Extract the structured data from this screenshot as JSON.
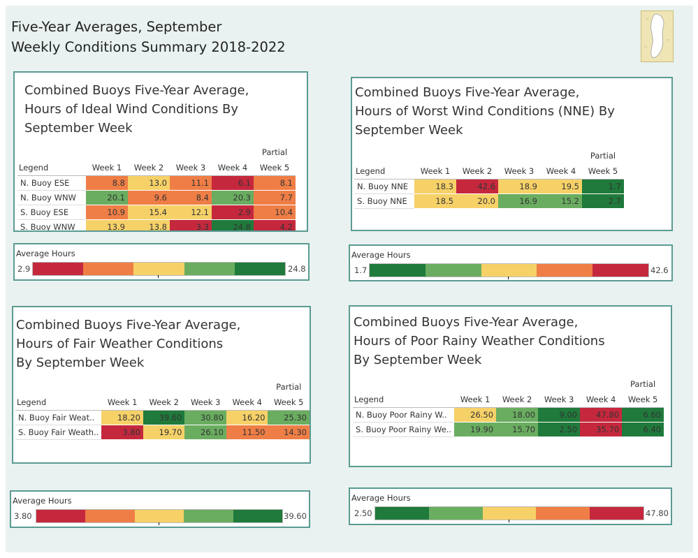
{
  "page": {
    "title_line1": "Five-Year Averages, September",
    "title_line2": "Weekly Conditions Summary 2018-2022",
    "map_icon": "great-lakes-map-thumbnail"
  },
  "colors": {
    "red": "#c5283d",
    "orange": "#ef7e46",
    "yellow": "#f6d168",
    "lightgreen": "#6aad60",
    "darkgreen": "#1f7a3b",
    "border": "#5a9a93",
    "background": "#e9f2f0"
  },
  "panels": [
    {
      "title": [
        "Combined Buoys Five-Year Average,",
        "Hours of Ideal Wind Conditions By",
        "September Week"
      ],
      "legend_header": "Legend",
      "partial_label": "Partial",
      "columns": [
        "Week 1",
        "Week 2",
        "Week 3",
        "Week 4",
        "Week 5"
      ],
      "rows": [
        {
          "label": "N. Buoy ESE",
          "values": [
            "8.8",
            "13.0",
            "11.1",
            "6.1",
            "8.1"
          ],
          "colors": [
            "orange",
            "yellow",
            "orange",
            "red",
            "orange"
          ]
        },
        {
          "label": "N. Buoy WNW",
          "values": [
            "20.1",
            "9.6",
            "8.4",
            "20.3",
            "7.7"
          ],
          "colors": [
            "lightgreen",
            "orange",
            "orange",
            "lightgreen",
            "orange"
          ]
        },
        {
          "label": "S. Buoy ESE",
          "values": [
            "10.9",
            "15.4",
            "12.1",
            "2.9",
            "10.4"
          ],
          "colors": [
            "orange",
            "yellow",
            "yellow",
            "red",
            "orange"
          ]
        },
        {
          "label": "S. Buoy WNW",
          "values": [
            "13.9",
            "13.8",
            "3.3",
            "24.8",
            "4.2"
          ],
          "colors": [
            "yellow",
            "yellow",
            "red",
            "darkgreen",
            "red"
          ]
        }
      ],
      "scale": {
        "label": "Average Hours",
        "min": "2.9",
        "max": "24.8",
        "colors": [
          "red",
          "orange",
          "yellow",
          "lightgreen",
          "darkgreen"
        ]
      }
    },
    {
      "title": [
        "Combined Buoys Five-Year Average,",
        "Hours of Worst Wind Conditions (NNE) By",
        "September Week"
      ],
      "legend_header": "Legend",
      "partial_label": "Partial",
      "columns": [
        "Week 1",
        "Week 2",
        "Week 3",
        "Week 4",
        "Week 5"
      ],
      "rows": [
        {
          "label": "N. Buoy NNE",
          "values": [
            "18.3",
            "42.6",
            "18.9",
            "19.5",
            "1.7"
          ],
          "colors": [
            "yellow",
            "red",
            "yellow",
            "yellow",
            "darkgreen"
          ]
        },
        {
          "label": "S. Buoy NNE",
          "values": [
            "18.5",
            "20.0",
            "16.9",
            "15.2",
            "2.7"
          ],
          "colors": [
            "yellow",
            "yellow",
            "lightgreen",
            "lightgreen",
            "darkgreen"
          ]
        }
      ],
      "scale": {
        "label": "Average Hours",
        "min": "1.7",
        "max": "42.6",
        "colors": [
          "darkgreen",
          "lightgreen",
          "yellow",
          "orange",
          "red"
        ]
      }
    },
    {
      "title": [
        "Combined Buoys Five-Year Average,",
        "Hours of Fair Weather Conditions",
        "By September Week"
      ],
      "legend_header": "Legend",
      "partial_label": "Partial",
      "columns": [
        "Week 1",
        "Week 2",
        "Week 3",
        "Week 4",
        "Week 5"
      ],
      "rows": [
        {
          "label": "N. Buoy Fair Weat..",
          "values": [
            "18.20",
            "39.60",
            "30.80",
            "16.20",
            "25.30"
          ],
          "colors": [
            "yellow",
            "darkgreen",
            "lightgreen",
            "yellow",
            "lightgreen"
          ]
        },
        {
          "label": "S. Buoy Fair Weath..",
          "values": [
            "3.80",
            "19.70",
            "26.10",
            "11.50",
            "14.30"
          ],
          "colors": [
            "red",
            "yellow",
            "lightgreen",
            "orange",
            "orange"
          ]
        }
      ],
      "scale": {
        "label": "Average Hours",
        "min": "3.80",
        "max": "39.60",
        "colors": [
          "red",
          "orange",
          "yellow",
          "lightgreen",
          "darkgreen"
        ]
      }
    },
    {
      "title": [
        "Combined Buoys Five-Year Average,",
        "Hours of Poor Rainy Weather Conditions",
        "By September Week"
      ],
      "legend_header": "Legend",
      "partial_label": "Partial",
      "columns": [
        "Week 1",
        "Week 2",
        "Week 3",
        "Week 4",
        "Week 5"
      ],
      "rows": [
        {
          "label": "N. Buoy Poor Rainy W..",
          "values": [
            "26.50",
            "18.00",
            "9.00",
            "47.80",
            "6.60"
          ],
          "colors": [
            "yellow",
            "lightgreen",
            "darkgreen",
            "red",
            "darkgreen"
          ]
        },
        {
          "label": "S. Buoy Poor Rainy We..",
          "values": [
            "19.90",
            "15.70",
            "2.50",
            "35.70",
            "6.40"
          ],
          "colors": [
            "lightgreen",
            "lightgreen",
            "darkgreen",
            "red",
            "darkgreen"
          ]
        }
      ],
      "scale": {
        "label": "Average Hours",
        "min": "2.50",
        "max": "47.80",
        "colors": [
          "darkgreen",
          "lightgreen",
          "yellow",
          "orange",
          "red"
        ]
      }
    }
  ]
}
